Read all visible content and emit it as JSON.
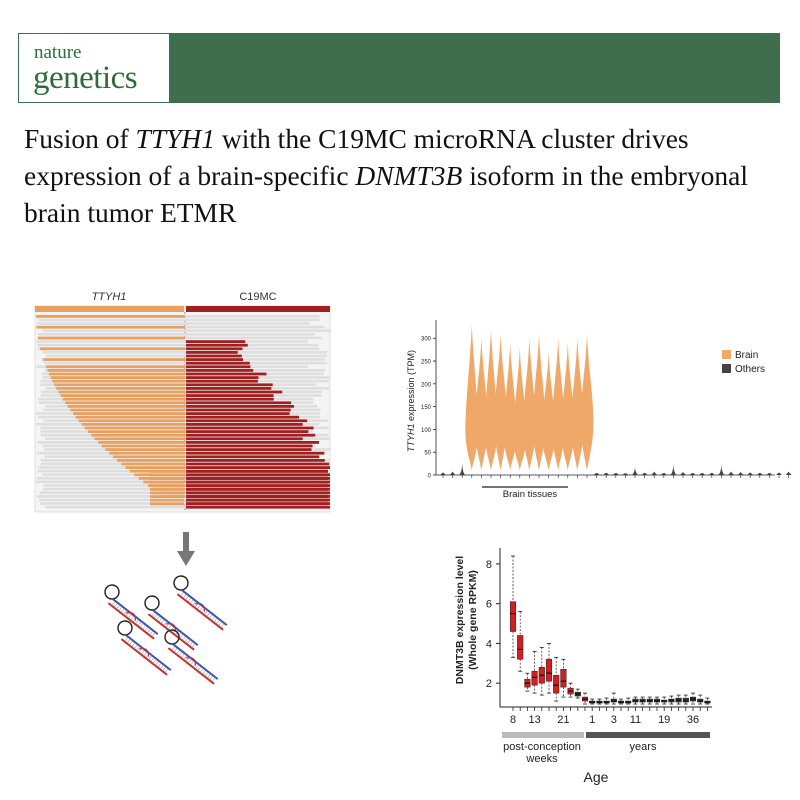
{
  "journal": {
    "line1": "nature",
    "line2": "genetics",
    "color": "#3e6e4b"
  },
  "title": {
    "part1": "Fusion of ",
    "gene1": "TTYH1",
    "part2": " with the C19MC microRNA cluster drives expression of a brain-specific ",
    "gene2": "DNMT3B",
    "part3": " isoform in the embryonal brain tumor ETMR"
  },
  "reads_panel": {
    "left_label": "TTYH1",
    "right_label": "C19MC",
    "left_color": "#e8a060",
    "right_color": "#a02020"
  },
  "chart_data": [
    {
      "type": "violin",
      "ylabel_gene": "TTYH1",
      "ylabel_rest": " expression (TPM)",
      "yticks": [
        0,
        50,
        100,
        150,
        200,
        250,
        300
      ],
      "ylim": [
        0,
        340
      ],
      "legend": [
        {
          "name": "Brain",
          "color": "#f0a868"
        },
        {
          "name": "Others",
          "color": "#444444"
        }
      ],
      "bracket_label": "Brain tissues",
      "brain_violins": [
        {
          "median": 100,
          "max": 330
        },
        {
          "median": 110,
          "max": 300
        },
        {
          "median": 100,
          "max": 320
        },
        {
          "median": 115,
          "max": 310
        },
        {
          "median": 95,
          "max": 290
        },
        {
          "median": 90,
          "max": 280
        },
        {
          "median": 105,
          "max": 300
        },
        {
          "median": 110,
          "max": 310
        },
        {
          "median": 95,
          "max": 270
        },
        {
          "median": 105,
          "max": 300
        },
        {
          "median": 100,
          "max": 290
        },
        {
          "median": 110,
          "max": 300
        },
        {
          "median": 115,
          "max": 310
        }
      ],
      "other_violins": [
        5,
        8,
        30,
        3,
        4,
        3,
        2,
        18,
        4,
        8,
        3,
        25,
        6,
        3,
        3,
        4,
        25,
        8,
        6,
        5,
        4,
        3,
        5,
        7
      ]
    },
    {
      "type": "boxplot",
      "ylabel": [
        "DNMT3B expression level",
        "(Whole gene RPKM)"
      ],
      "xlabel": "Age",
      "yticks": [
        2,
        4,
        6,
        8
      ],
      "ylim": [
        0.8,
        8.8
      ],
      "xticklabels": [
        "8",
        "13",
        "21",
        "1",
        "3",
        "11",
        "19",
        "36"
      ],
      "groups": [
        "post-conception weeks",
        "years"
      ],
      "group_colors": [
        "#bbbbbb",
        "#555555"
      ],
      "boxes": [
        {
          "q1": 4.6,
          "median": 5.5,
          "q3": 6.1,
          "min": 3.3,
          "max": 8.4,
          "color": "#d02020"
        },
        {
          "q1": 3.2,
          "median": 3.7,
          "q3": 4.4,
          "min": 2.6,
          "max": 5.6,
          "color": "#d02020"
        },
        {
          "q1": 1.8,
          "median": 2.0,
          "q3": 2.2,
          "min": 1.6,
          "max": 2.5,
          "color": "#d02020"
        },
        {
          "q1": 1.9,
          "median": 2.3,
          "q3": 2.6,
          "min": 1.5,
          "max": 3.6,
          "color": "#d02020"
        },
        {
          "q1": 2.0,
          "median": 2.4,
          "q3": 2.8,
          "min": 1.4,
          "max": 3.8,
          "color": "#d02020"
        },
        {
          "q1": 2.1,
          "median": 2.5,
          "q3": 3.2,
          "min": 1.5,
          "max": 4.0,
          "color": "#d02020"
        },
        {
          "q1": 1.5,
          "median": 1.9,
          "q3": 2.4,
          "min": 1.1,
          "max": 3.3,
          "color": "#d02020"
        },
        {
          "q1": 1.8,
          "median": 2.1,
          "q3": 2.7,
          "min": 1.3,
          "max": 3.2,
          "color": "#d02020"
        },
        {
          "q1": 1.45,
          "median": 1.6,
          "q3": 1.75,
          "min": 1.3,
          "max": 2.0,
          "color": "#d02020"
        },
        {
          "q1": 1.35,
          "median": 1.45,
          "q3": 1.55,
          "min": 1.25,
          "max": 1.7,
          "color": "#333333"
        },
        {
          "q1": 1.1,
          "median": 1.2,
          "q3": 1.3,
          "min": 0.95,
          "max": 1.5,
          "color": "#d02020"
        },
        {
          "q1": 1.0,
          "median": 1.05,
          "q3": 1.1,
          "min": 0.95,
          "max": 1.2,
          "color": "#333333"
        },
        {
          "q1": 1.0,
          "median": 1.05,
          "q3": 1.1,
          "min": 0.95,
          "max": 1.2,
          "color": "#333333"
        },
        {
          "q1": 1.0,
          "median": 1.05,
          "q3": 1.1,
          "min": 0.95,
          "max": 1.25,
          "color": "#333333"
        },
        {
          "q1": 1.05,
          "median": 1.1,
          "q3": 1.2,
          "min": 0.95,
          "max": 1.5,
          "color": "#333333"
        },
        {
          "q1": 1.0,
          "median": 1.05,
          "q3": 1.1,
          "min": 0.95,
          "max": 1.2,
          "color": "#333333"
        },
        {
          "q1": 1.0,
          "median": 1.05,
          "q3": 1.1,
          "min": 0.95,
          "max": 1.25,
          "color": "#333333"
        },
        {
          "q1": 1.05,
          "median": 1.1,
          "q3": 1.2,
          "min": 0.95,
          "max": 1.3,
          "color": "#333333"
        },
        {
          "q1": 1.05,
          "median": 1.1,
          "q3": 1.2,
          "min": 0.95,
          "max": 1.3,
          "color": "#333333"
        },
        {
          "q1": 1.05,
          "median": 1.1,
          "q3": 1.2,
          "min": 0.95,
          "max": 1.3,
          "color": "#333333"
        },
        {
          "q1": 1.05,
          "median": 1.1,
          "q3": 1.2,
          "min": 0.95,
          "max": 1.3,
          "color": "#333333"
        },
        {
          "q1": 1.05,
          "median": 1.1,
          "q3": 1.15,
          "min": 0.95,
          "max": 1.3,
          "color": "#333333"
        },
        {
          "q1": 1.05,
          "median": 1.15,
          "q3": 1.2,
          "min": 0.95,
          "max": 1.35,
          "color": "#333333"
        },
        {
          "q1": 1.05,
          "median": 1.15,
          "q3": 1.25,
          "min": 0.95,
          "max": 1.4,
          "color": "#333333"
        },
        {
          "q1": 1.05,
          "median": 1.1,
          "q3": 1.25,
          "min": 0.95,
          "max": 1.4,
          "color": "#333333"
        },
        {
          "q1": 1.1,
          "median": 1.2,
          "q3": 1.3,
          "min": 0.95,
          "max": 1.5,
          "color": "#333333"
        },
        {
          "q1": 1.05,
          "median": 1.1,
          "q3": 1.2,
          "min": 0.95,
          "max": 1.4,
          "color": "#333333"
        },
        {
          "q1": 1.0,
          "median": 1.05,
          "q3": 1.1,
          "min": 0.95,
          "max": 1.25,
          "color": "#333333"
        }
      ]
    }
  ]
}
